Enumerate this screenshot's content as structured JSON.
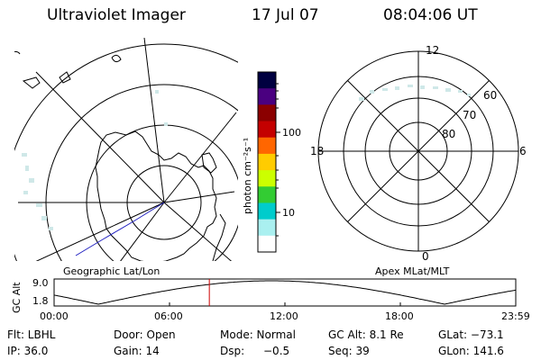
{
  "header": {
    "instrument": "Ultraviolet Imager",
    "date": "17 Jul 07",
    "time": "08:04:06 UT"
  },
  "colorbar": {
    "unit_label": "photon cm⁻²s⁻¹",
    "ticks": [
      "100",
      "10"
    ],
    "colors": [
      "#000040",
      "#4a0080",
      "#8b0000",
      "#c40000",
      "#ff6600",
      "#ffcc00",
      "#ccff00",
      "#33cc33",
      "#00cccc",
      "#aaf0f0",
      "#ffffff"
    ]
  },
  "geo_map": {
    "label": "Geographic Lat/Lon"
  },
  "apex_map": {
    "label": "Apex MLat/MLT",
    "mlt_labels": [
      "12",
      "18",
      "6",
      "0"
    ],
    "lat_labels": [
      "60",
      "70",
      "80"
    ]
  },
  "timeline": {
    "axis_title": "GC Alt",
    "y_ticks": [
      "9.0",
      "1.8"
    ],
    "x_ticks": [
      "00:00",
      "06:00",
      "12:00",
      "18:00",
      "23:59"
    ],
    "marker_time_hours": 8.07
  },
  "info": {
    "flt": "Flt: LBHL",
    "door": "Door: Open",
    "mode": "Mode: Normal",
    "gc_alt": "GC Alt: 8.1 Re",
    "glat": "GLat: −73.1",
    "ip": "IP: 36.0",
    "gain": "Gain: 14",
    "dsp_label": "Dsp:",
    "dsp_value": "−0.5",
    "seq": "Seq: 39",
    "glon": "GLon: 141.6"
  }
}
